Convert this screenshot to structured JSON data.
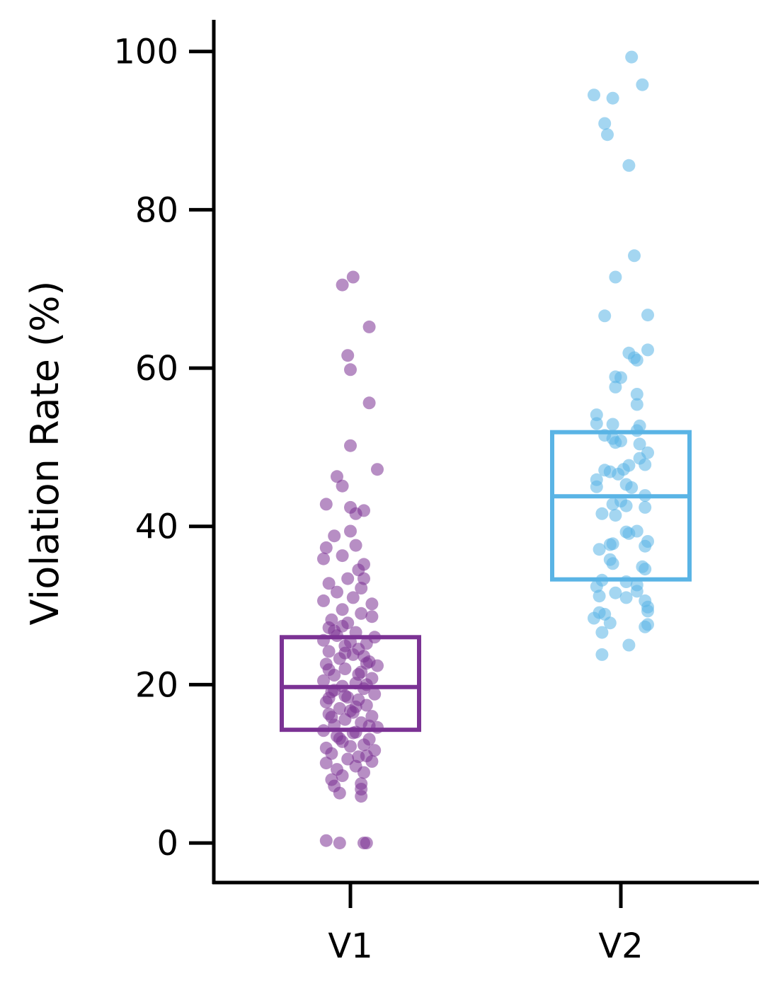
{
  "chart_data": {
    "type": "box+strip",
    "title": "",
    "xlabel": "",
    "ylabel": "Violation Rate (%)",
    "ylim": [
      -5,
      104
    ],
    "yticks": [
      0,
      20,
      40,
      60,
      80,
      100
    ],
    "categories": [
      "V1",
      "V2"
    ],
    "grid": false,
    "legend": "none",
    "colors": {
      "V1": "#7b3294",
      "V2": "#5ab4e5"
    },
    "box_stats": [
      {
        "category": "V1",
        "q1": 14.3,
        "median": 19.7,
        "q3": 26.0
      },
      {
        "category": "V2",
        "q1": 33.3,
        "median": 43.8,
        "q3": 51.9
      }
    ],
    "points": {
      "V1": [
        {
          "x": -0.09,
          "y": 0.3
        },
        {
          "x": -0.04,
          "y": 0.0
        },
        {
          "x": 0.05,
          "y": 0.0
        },
        {
          "x": 0.06,
          "y": 0.0
        },
        {
          "x": -0.03,
          "y": 70.5
        },
        {
          "x": 0.01,
          "y": 71.5
        },
        {
          "x": 0.07,
          "y": 65.2
        },
        {
          "x": -0.01,
          "y": 61.6
        },
        {
          "x": 0.0,
          "y": 59.8
        },
        {
          "x": 0.07,
          "y": 55.6
        },
        {
          "x": 0.0,
          "y": 50.2
        },
        {
          "x": 0.1,
          "y": 47.2
        },
        {
          "x": -0.05,
          "y": 46.3
        },
        {
          "x": -0.03,
          "y": 45.1
        },
        {
          "x": -0.09,
          "y": 42.8
        },
        {
          "x": 0.0,
          "y": 42.4
        },
        {
          "x": 0.05,
          "y": 42.0
        },
        {
          "x": 0.02,
          "y": 41.6
        },
        {
          "x": 0.0,
          "y": 39.4
        },
        {
          "x": -0.06,
          "y": 38.8
        },
        {
          "x": 0.02,
          "y": 37.6
        },
        {
          "x": -0.09,
          "y": 37.3
        },
        {
          "x": -0.03,
          "y": 36.3
        },
        {
          "x": -0.1,
          "y": 35.9
        },
        {
          "x": 0.05,
          "y": 35.2
        },
        {
          "x": 0.03,
          "y": 34.5
        },
        {
          "x": -0.01,
          "y": 33.4
        },
        {
          "x": 0.05,
          "y": 33.4
        },
        {
          "x": -0.08,
          "y": 32.8
        },
        {
          "x": 0.04,
          "y": 32.2
        },
        {
          "x": -0.05,
          "y": 31.7
        },
        {
          "x": 0.01,
          "y": 31.0
        },
        {
          "x": -0.1,
          "y": 30.6
        },
        {
          "x": 0.08,
          "y": 30.2
        },
        {
          "x": -0.03,
          "y": 29.5
        },
        {
          "x": 0.04,
          "y": 29.0
        },
        {
          "x": 0.08,
          "y": 28.6
        },
        {
          "x": -0.07,
          "y": 28.2
        },
        {
          "x": -0.01,
          "y": 27.8
        },
        {
          "x": -0.08,
          "y": 27.2
        },
        {
          "x": 0.02,
          "y": 26.6
        },
        {
          "x": -0.05,
          "y": 26.2
        },
        {
          "x": 0.09,
          "y": 26.0
        },
        {
          "x": -0.1,
          "y": 25.6
        },
        {
          "x": 0.06,
          "y": 25.2
        },
        {
          "x": -0.02,
          "y": 24.9
        },
        {
          "x": 0.03,
          "y": 24.5
        },
        {
          "x": -0.08,
          "y": 24.2
        },
        {
          "x": 0.01,
          "y": 23.8
        },
        {
          "x": -0.04,
          "y": 23.3
        },
        {
          "x": 0.07,
          "y": 22.9
        },
        {
          "x": -0.09,
          "y": 22.6
        },
        {
          "x": 0.1,
          "y": 22.4
        },
        {
          "x": -0.02,
          "y": 22.0
        },
        {
          "x": 0.04,
          "y": 21.6
        },
        {
          "x": -0.06,
          "y": 21.2
        },
        {
          "x": 0.08,
          "y": 20.8
        },
        {
          "x": -0.1,
          "y": 20.5
        },
        {
          "x": 0.02,
          "y": 20.2
        },
        {
          "x": -0.03,
          "y": 19.8
        },
        {
          "x": 0.05,
          "y": 19.5
        },
        {
          "x": -0.07,
          "y": 19.1
        },
        {
          "x": 0.09,
          "y": 18.8
        },
        {
          "x": -0.01,
          "y": 18.4
        },
        {
          "x": 0.03,
          "y": 18.1
        },
        {
          "x": -0.09,
          "y": 17.8
        },
        {
          "x": 0.06,
          "y": 17.4
        },
        {
          "x": -0.04,
          "y": 17.0
        },
        {
          "x": 0.0,
          "y": 16.7
        },
        {
          "x": -0.08,
          "y": 16.3
        },
        {
          "x": 0.08,
          "y": 16.0
        },
        {
          "x": -0.02,
          "y": 15.6
        },
        {
          "x": 0.04,
          "y": 15.2
        },
        {
          "x": -0.06,
          "y": 14.9
        },
        {
          "x": 0.1,
          "y": 14.6
        },
        {
          "x": -0.1,
          "y": 14.2
        },
        {
          "x": 0.01,
          "y": 13.9
        },
        {
          "x": -0.05,
          "y": 13.5
        },
        {
          "x": 0.07,
          "y": 13.1
        },
        {
          "x": -0.03,
          "y": 12.8
        },
        {
          "x": 0.05,
          "y": 12.4
        },
        {
          "x": -0.09,
          "y": 12.0
        },
        {
          "x": 0.09,
          "y": 11.7
        },
        {
          "x": -0.07,
          "y": 11.3
        },
        {
          "x": 0.03,
          "y": 10.9
        },
        {
          "x": -0.01,
          "y": 10.6
        },
        {
          "x": 0.08,
          "y": 10.3
        },
        {
          "x": -0.09,
          "y": 10.1
        },
        {
          "x": 0.02,
          "y": 9.7
        },
        {
          "x": -0.05,
          "y": 9.3
        },
        {
          "x": 0.05,
          "y": 8.9
        },
        {
          "x": -0.03,
          "y": 8.5
        },
        {
          "x": -0.07,
          "y": 8.0
        },
        {
          "x": 0.04,
          "y": 7.5
        },
        {
          "x": -0.06,
          "y": 7.2
        },
        {
          "x": 0.04,
          "y": 6.8
        },
        {
          "x": -0.04,
          "y": 6.3
        },
        {
          "x": 0.04,
          "y": 5.9
        },
        {
          "x": -0.06,
          "y": 26.8
        },
        {
          "x": 0.0,
          "y": 25.4
        },
        {
          "x": 0.05,
          "y": 23.6
        },
        {
          "x": -0.08,
          "y": 21.9
        },
        {
          "x": 0.06,
          "y": 20.0
        },
        {
          "x": -0.02,
          "y": 18.6
        },
        {
          "x": 0.02,
          "y": 17.2
        },
        {
          "x": -0.07,
          "y": 15.9
        },
        {
          "x": 0.07,
          "y": 14.8
        },
        {
          "x": -0.04,
          "y": 13.2
        },
        {
          "x": 0.0,
          "y": 12.2
        },
        {
          "x": 0.06,
          "y": 11.0
        },
        {
          "x": -0.02,
          "y": 24.0
        },
        {
          "x": 0.03,
          "y": 21.3
        },
        {
          "x": -0.06,
          "y": 19.3
        },
        {
          "x": 0.01,
          "y": 16.5
        },
        {
          "x": -0.08,
          "y": 18.3
        },
        {
          "x": 0.06,
          "y": 22.7
        },
        {
          "x": -0.03,
          "y": 27.4
        },
        {
          "x": 0.02,
          "y": 14.0
        }
      ],
      "V2": [
        {
          "x": 0.04,
          "y": 99.3
        },
        {
          "x": 0.08,
          "y": 95.8
        },
        {
          "x": -0.1,
          "y": 94.5
        },
        {
          "x": -0.03,
          "y": 94.1
        },
        {
          "x": -0.06,
          "y": 90.9
        },
        {
          "x": -0.05,
          "y": 89.5
        },
        {
          "x": 0.03,
          "y": 85.6
        },
        {
          "x": 0.05,
          "y": 74.2
        },
        {
          "x": -0.02,
          "y": 71.5
        },
        {
          "x": -0.06,
          "y": 66.6
        },
        {
          "x": 0.1,
          "y": 66.7
        },
        {
          "x": 0.1,
          "y": 62.3
        },
        {
          "x": 0.03,
          "y": 61.9
        },
        {
          "x": 0.05,
          "y": 61.3
        },
        {
          "x": 0.06,
          "y": 61.0
        },
        {
          "x": -0.02,
          "y": 58.9
        },
        {
          "x": 0.0,
          "y": 58.8
        },
        {
          "x": -0.02,
          "y": 57.6
        },
        {
          "x": 0.06,
          "y": 56.7
        },
        {
          "x": 0.06,
          "y": 55.4
        },
        {
          "x": -0.09,
          "y": 54.1
        },
        {
          "x": -0.09,
          "y": 53.0
        },
        {
          "x": -0.03,
          "y": 52.9
        },
        {
          "x": 0.07,
          "y": 52.7
        },
        {
          "x": 0.06,
          "y": 52.1
        },
        {
          "x": -0.06,
          "y": 51.5
        },
        {
          "x": -0.03,
          "y": 51.1
        },
        {
          "x": 0.0,
          "y": 50.8
        },
        {
          "x": -0.02,
          "y": 50.6
        },
        {
          "x": 0.07,
          "y": 50.4
        },
        {
          "x": 0.1,
          "y": 49.3
        },
        {
          "x": 0.07,
          "y": 48.6
        },
        {
          "x": 0.09,
          "y": 47.8
        },
        {
          "x": 0.03,
          "y": 47.7
        },
        {
          "x": 0.01,
          "y": 47.2
        },
        {
          "x": -0.06,
          "y": 47.1
        },
        {
          "x": -0.04,
          "y": 46.9
        },
        {
          "x": -0.01,
          "y": 46.6
        },
        {
          "x": -0.09,
          "y": 45.9
        },
        {
          "x": 0.02,
          "y": 45.3
        },
        {
          "x": -0.09,
          "y": 45.0
        },
        {
          "x": 0.04,
          "y": 44.9
        },
        {
          "x": 0.09,
          "y": 43.9
        },
        {
          "x": 0.0,
          "y": 43.2
        },
        {
          "x": -0.03,
          "y": 42.8
        },
        {
          "x": 0.02,
          "y": 42.6
        },
        {
          "x": 0.09,
          "y": 42.4
        },
        {
          "x": -0.07,
          "y": 41.6
        },
        {
          "x": -0.02,
          "y": 41.4
        },
        {
          "x": 0.06,
          "y": 39.4
        },
        {
          "x": 0.02,
          "y": 39.3
        },
        {
          "x": 0.03,
          "y": 39.1
        },
        {
          "x": -0.03,
          "y": 37.8
        },
        {
          "x": -0.04,
          "y": 37.7
        },
        {
          "x": 0.1,
          "y": 38.1
        },
        {
          "x": 0.09,
          "y": 37.5
        },
        {
          "x": -0.08,
          "y": 37.1
        },
        {
          "x": -0.04,
          "y": 35.8
        },
        {
          "x": -0.03,
          "y": 35.3
        },
        {
          "x": 0.08,
          "y": 34.9
        },
        {
          "x": 0.09,
          "y": 34.6
        },
        {
          "x": -0.07,
          "y": 33.2
        },
        {
          "x": 0.02,
          "y": 33.0
        },
        {
          "x": 0.06,
          "y": 32.6
        },
        {
          "x": -0.09,
          "y": 32.4
        },
        {
          "x": 0.06,
          "y": 31.8
        },
        {
          "x": -0.02,
          "y": 31.6
        },
        {
          "x": -0.08,
          "y": 31.2
        },
        {
          "x": 0.02,
          "y": 31.0
        },
        {
          "x": 0.09,
          "y": 30.6
        },
        {
          "x": 0.1,
          "y": 29.8
        },
        {
          "x": 0.1,
          "y": 29.3
        },
        {
          "x": -0.08,
          "y": 29.1
        },
        {
          "x": -0.06,
          "y": 28.9
        },
        {
          "x": -0.1,
          "y": 28.4
        },
        {
          "x": -0.04,
          "y": 27.8
        },
        {
          "x": 0.1,
          "y": 27.6
        },
        {
          "x": 0.09,
          "y": 27.3
        },
        {
          "x": -0.07,
          "y": 26.6
        },
        {
          "x": 0.03,
          "y": 25.0
        },
        {
          "x": -0.07,
          "y": 23.8
        }
      ]
    }
  }
}
